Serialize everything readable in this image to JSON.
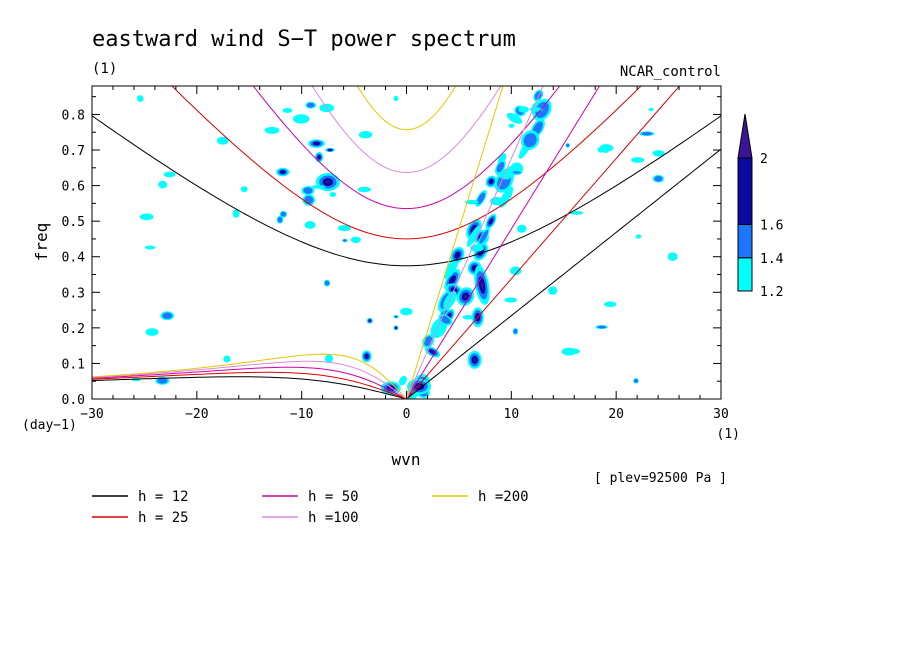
{
  "chart_data": {
    "type": "contour",
    "title": "eastward wind S−T power spectrum",
    "subtitle_left": "(1)",
    "subtitle_right": "NCAR_control",
    "xlabel": "wvn",
    "ylabel": "freq",
    "x_unit_label": "(1)",
    "y_unit_label": "(day−1)",
    "xlim": [
      -30,
      30
    ],
    "ylim": [
      0.0,
      0.88
    ],
    "x_ticks": [
      -30,
      -20,
      -10,
      0,
      10,
      20,
      30
    ],
    "x_tick_labels": [
      "−30",
      "−20",
      "−10",
      "0",
      "10",
      "20",
      "30"
    ],
    "y_ticks": [
      0.0,
      0.1,
      0.2,
      0.3,
      0.4,
      0.5,
      0.6,
      0.7,
      0.8
    ],
    "y_tick_labels": [
      "0.0",
      "0.1",
      "0.2",
      "0.3",
      "0.4",
      "0.5",
      "0.6",
      "0.7",
      "0.8"
    ],
    "annotation": "[ plev=92500 Pa ]",
    "colorbar": {
      "levels": [
        1.2,
        1.4,
        1.6,
        2.0
      ],
      "labels": [
        "1.2",
        "1.4",
        "1.6",
        "2"
      ],
      "colors": [
        "#00ffff",
        "#1e78ff",
        "#0a0aa0",
        "#3c1496"
      ]
    },
    "dispersion_curves": [
      {
        "name": "h = 12",
        "h": 12,
        "color": "#000000"
      },
      {
        "name": "h = 25",
        "h": 25,
        "color": "#dd0000"
      },
      {
        "name": "h = 50",
        "h": 50,
        "color": "#cc00aa"
      },
      {
        "name": "h =100",
        "h": 100,
        "color": "#dd88dd"
      },
      {
        "name": "h =200",
        "h": 200,
        "color": "#e6c800"
      }
    ],
    "grid": false,
    "legend_position": "bottom"
  }
}
